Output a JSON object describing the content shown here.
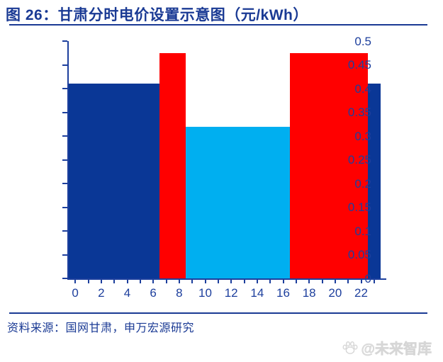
{
  "title": "图 26：甘肃分时电价设置示意图（元/kWh）",
  "source_note": "资料来源：国网甘肃，申万宏源研究",
  "watermark": {
    "icon": "paw-icon",
    "text": "@未来智库"
  },
  "colors": {
    "title_navy": "#1a3a94",
    "axis_navy": "#1d3f9d",
    "flat_bar": "#0a3796",
    "valley_bar": "#00aff0",
    "peak_bar": "#ff0000",
    "watermark_gray": "#dedede"
  },
  "chart_data": {
    "type": "bar",
    "title": "甘肃分时电价设置示意图",
    "unit": "元/kWh",
    "x_hours": [
      0,
      1,
      2,
      3,
      4,
      5,
      6,
      7,
      8,
      9,
      10,
      11,
      12,
      13,
      14,
      15,
      16,
      17,
      18,
      19,
      20,
      21,
      22,
      23
    ],
    "values": [
      0.41,
      0.41,
      0.41,
      0.41,
      0.41,
      0.41,
      0.41,
      0.475,
      0.475,
      0.32,
      0.32,
      0.32,
      0.32,
      0.32,
      0.32,
      0.32,
      0.32,
      0.475,
      0.475,
      0.475,
      0.475,
      0.475,
      0.475,
      0.41
    ],
    "bar_roles": [
      "flat",
      "flat",
      "flat",
      "flat",
      "flat",
      "flat",
      "flat",
      "peak",
      "peak",
      "valley",
      "valley",
      "valley",
      "valley",
      "valley",
      "valley",
      "valley",
      "valley",
      "peak",
      "peak",
      "peak",
      "peak",
      "peak",
      "peak",
      "flat"
    ],
    "segments": [
      {
        "hour_range": "0-6",
        "value": 0.41,
        "role": "flat"
      },
      {
        "hour_range": "7-8",
        "value": 0.475,
        "role": "peak"
      },
      {
        "hour_range": "9-16",
        "value": 0.32,
        "role": "valley"
      },
      {
        "hour_range": "17-22",
        "value": 0.475,
        "role": "peak"
      },
      {
        "hour_range": "23",
        "value": 0.41,
        "role": "flat"
      }
    ],
    "ylim": [
      0,
      0.5
    ],
    "ytick_labels": [
      "0",
      "0.05",
      "0.1",
      "0.15",
      "0.2",
      "0.25",
      "0.3",
      "0.35",
      "0.4",
      "0.45",
      "0.5"
    ],
    "xtick_label_hours": [
      0,
      2,
      4,
      6,
      8,
      10,
      12,
      14,
      16,
      18,
      20,
      22
    ],
    "grid": false,
    "legend": "none",
    "bar_gap": 0
  }
}
